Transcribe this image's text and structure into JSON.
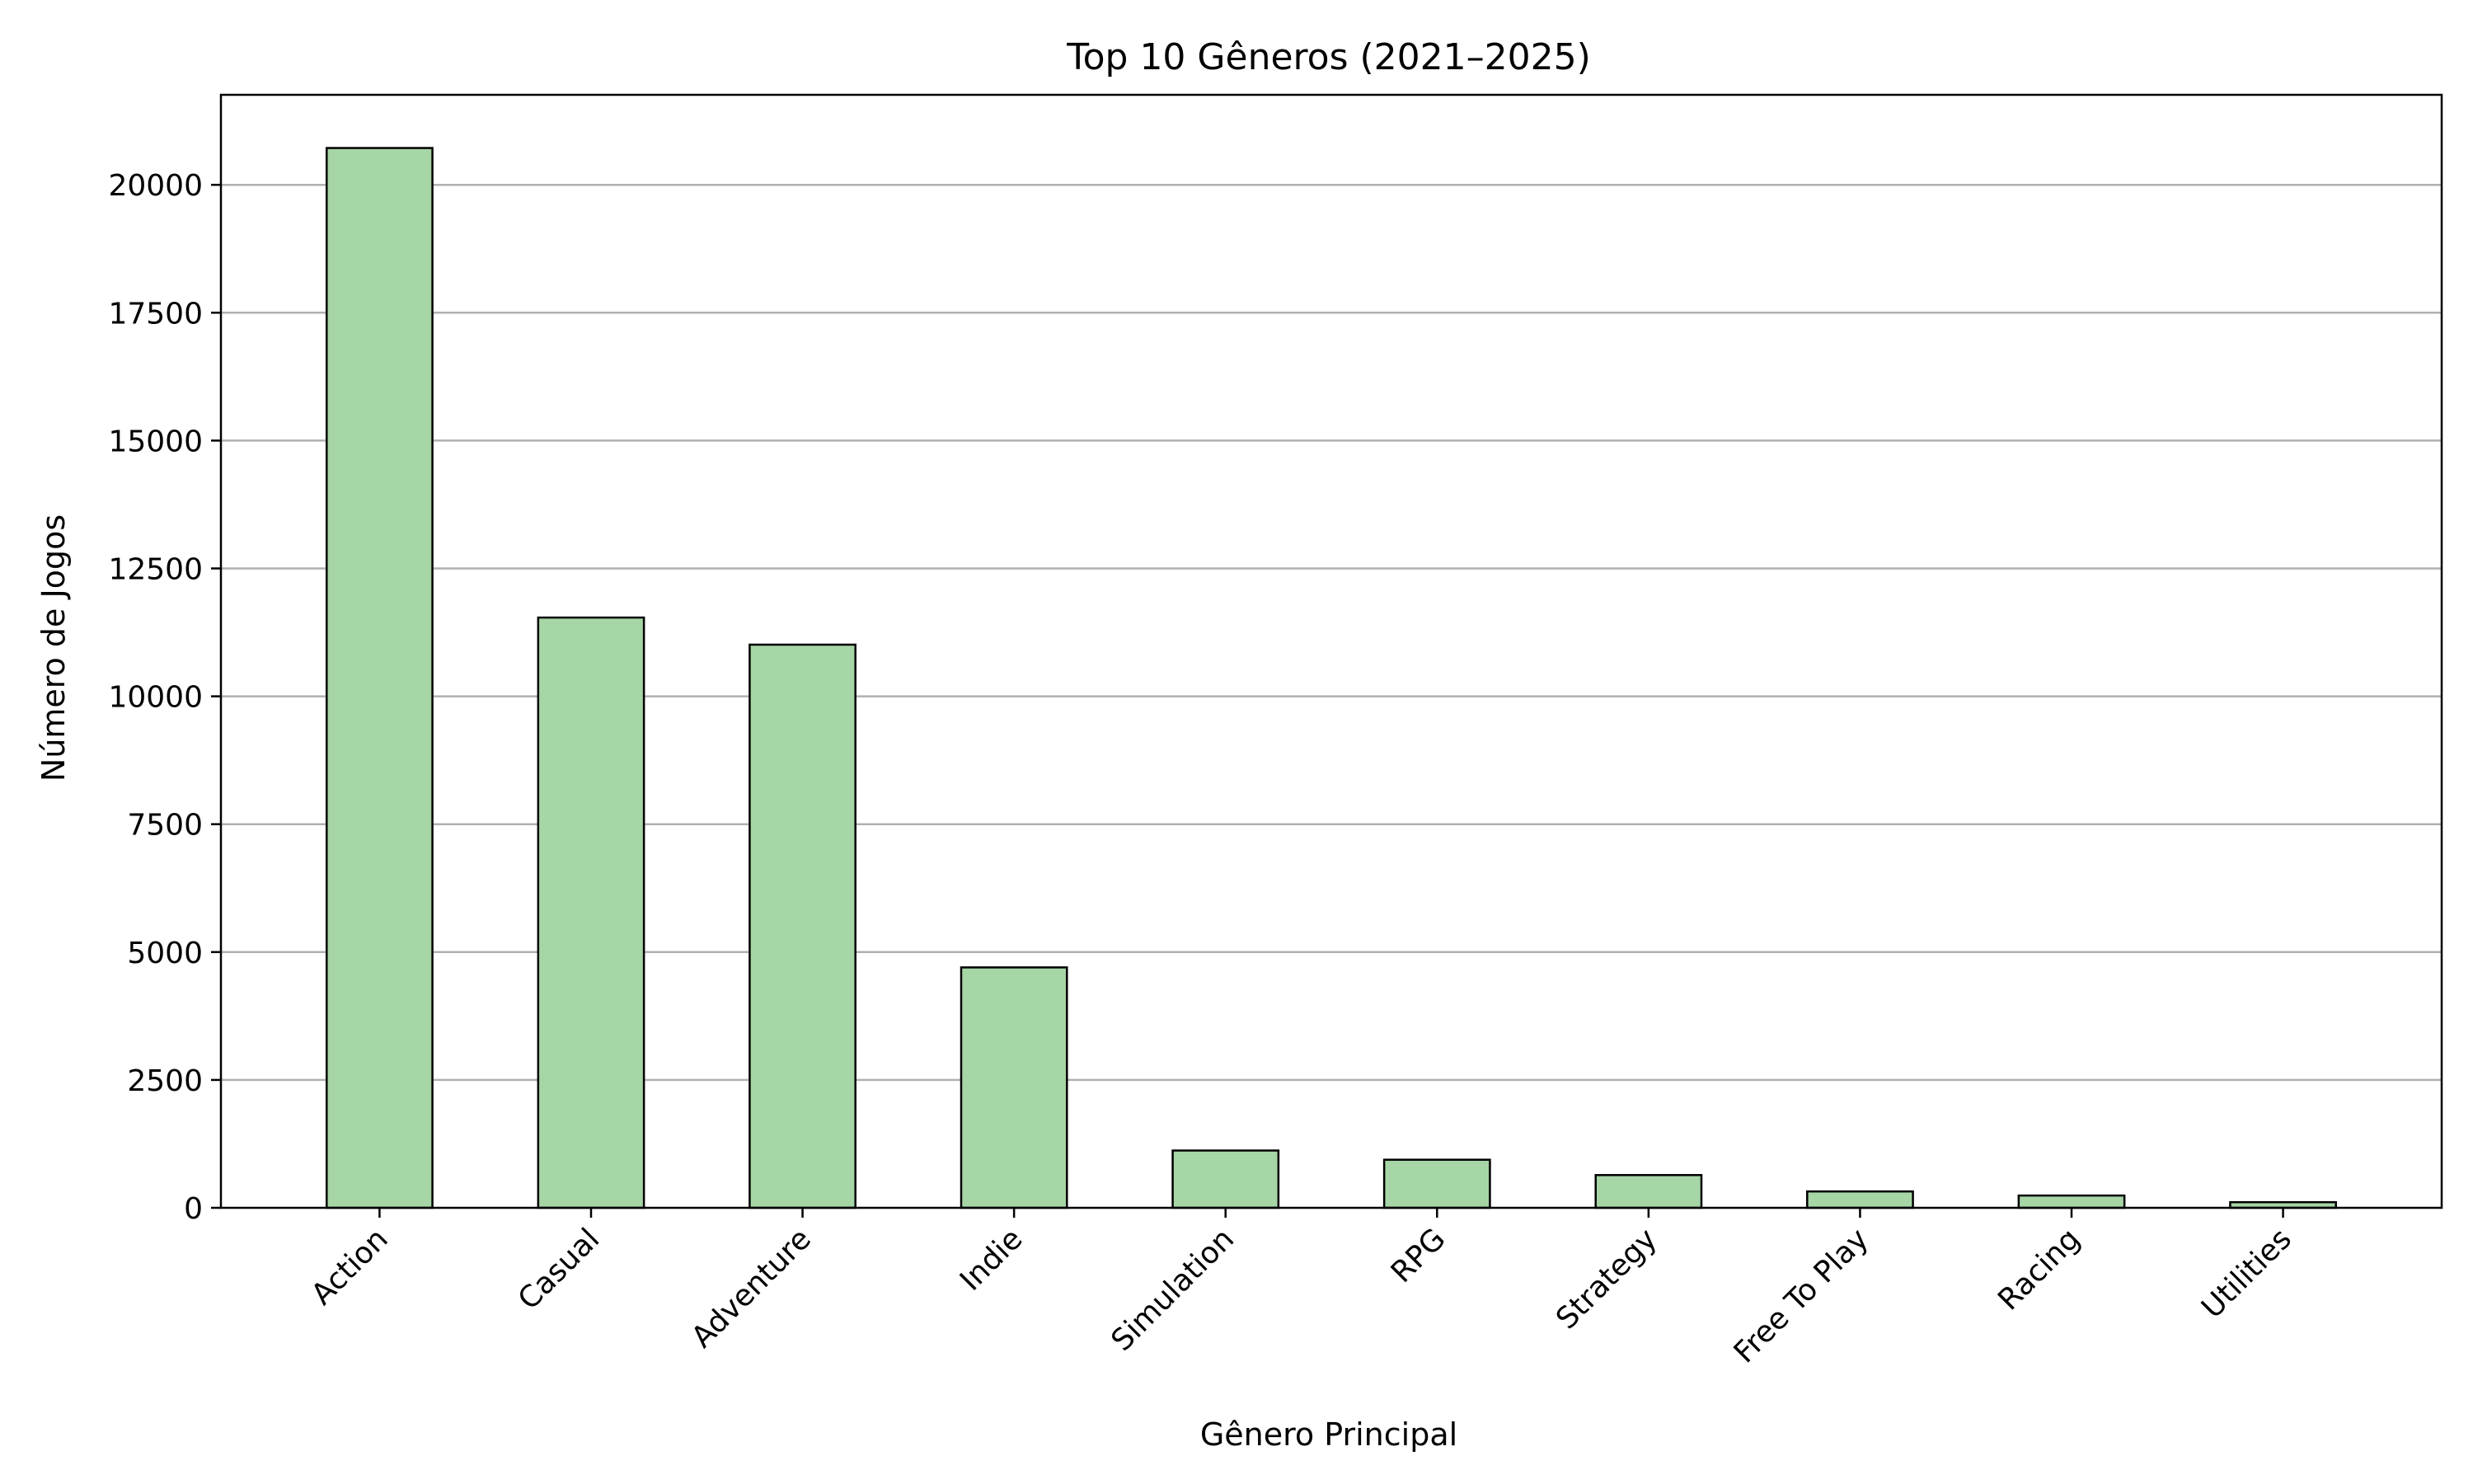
{
  "chart_data": {
    "type": "bar",
    "title": "Top 10 Gêneros (2021–2025)",
    "xlabel": "Gênero Principal",
    "ylabel": "Número de Jogos",
    "categories": [
      "Action",
      "Casual",
      "Adventure",
      "Indie",
      "Simulation",
      "RPG",
      "Strategy",
      "Free To Play",
      "Racing",
      "Utilities"
    ],
    "values": [
      20720,
      11540,
      11010,
      4700,
      1120,
      940,
      640,
      320,
      240,
      110
    ],
    "ylim": [
      0,
      21760
    ],
    "yticks": [
      0,
      2500,
      5000,
      7500,
      10000,
      12500,
      15000,
      17500,
      20000
    ],
    "ytick_labels": [
      "0",
      "2500",
      "5000",
      "7500",
      "10000",
      "12500",
      "15000",
      "17500",
      "20000"
    ],
    "grid": "y",
    "colors": {
      "bar_fill": "#a6d5a6",
      "bar_edge": "#000000",
      "grid": "#b0b0b0",
      "axis": "#000000"
    }
  }
}
